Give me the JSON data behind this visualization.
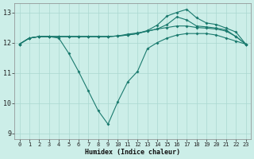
{
  "xlabel": "Humidex (Indice chaleur)",
  "bg_color": "#cceee8",
  "grid_color": "#aad8d0",
  "line_color": "#1a7a6e",
  "xlim": [
    -0.5,
    23.5
  ],
  "ylim": [
    8.8,
    13.3
  ],
  "yticks": [
    9,
    10,
    11,
    12,
    13
  ],
  "xticks": [
    0,
    1,
    2,
    3,
    4,
    5,
    6,
    7,
    8,
    9,
    10,
    11,
    12,
    13,
    14,
    15,
    16,
    17,
    18,
    19,
    20,
    21,
    22,
    23
  ],
  "line1_x": [
    0,
    1,
    2,
    3,
    4,
    5,
    6,
    7,
    8,
    9,
    10,
    11,
    12,
    13,
    14,
    15,
    16,
    17,
    18,
    19,
    20,
    21,
    22,
    23
  ],
  "line1_y": [
    11.95,
    12.15,
    12.2,
    12.2,
    12.15,
    11.65,
    11.05,
    10.4,
    9.75,
    9.3,
    10.05,
    10.7,
    11.05,
    11.8,
    12.0,
    12.15,
    12.25,
    12.3,
    12.3,
    12.3,
    12.25,
    12.15,
    12.05,
    11.95
  ],
  "line2_x": [
    0,
    1,
    2,
    3,
    4,
    5,
    6,
    7,
    8,
    9,
    10,
    11,
    12,
    13,
    14,
    15,
    16,
    17,
    18,
    19,
    20,
    21,
    22,
    23
  ],
  "line2_y": [
    11.95,
    12.15,
    12.2,
    12.2,
    12.2,
    12.2,
    12.2,
    12.2,
    12.2,
    12.2,
    12.22,
    12.28,
    12.32,
    12.38,
    12.45,
    12.5,
    12.55,
    12.55,
    12.5,
    12.48,
    12.45,
    12.38,
    12.2,
    11.95
  ],
  "line3_x": [
    0,
    1,
    2,
    3,
    4,
    5,
    6,
    7,
    8,
    9,
    10,
    11,
    12,
    13,
    14,
    15,
    16,
    17,
    18,
    19,
    20,
    21,
    22,
    23
  ],
  "line3_y": [
    11.95,
    12.15,
    12.2,
    12.2,
    12.2,
    12.2,
    12.2,
    12.2,
    12.2,
    12.2,
    12.22,
    12.25,
    12.3,
    12.38,
    12.45,
    12.6,
    12.85,
    12.75,
    12.55,
    12.52,
    12.48,
    12.42,
    12.2,
    11.95
  ],
  "line4_x": [
    0,
    1,
    2,
    3,
    4,
    5,
    6,
    7,
    8,
    9,
    10,
    11,
    12,
    13,
    14,
    15,
    16,
    17,
    18,
    19,
    20,
    21,
    22,
    23
  ],
  "line4_y": [
    11.95,
    12.15,
    12.2,
    12.2,
    12.2,
    12.2,
    12.2,
    12.2,
    12.2,
    12.2,
    12.22,
    12.25,
    12.3,
    12.4,
    12.58,
    12.88,
    13.0,
    13.1,
    12.82,
    12.65,
    12.6,
    12.48,
    12.35,
    11.95
  ]
}
